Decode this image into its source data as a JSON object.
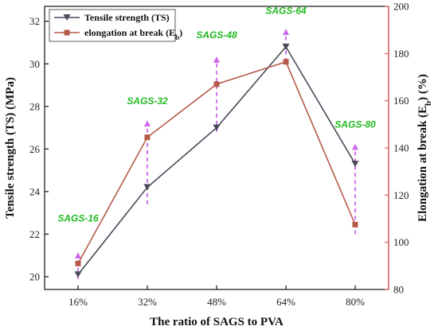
{
  "chart_data": {
    "type": "line",
    "categories": [
      "16%",
      "32%",
      "48%",
      "64%",
      "80%"
    ],
    "xlabel": "The ratio of SAGS to PVA",
    "ylabel_left": {
      "pre": "Tensile strength (TS) (MPa)",
      "sub": "",
      "post": ""
    },
    "ylabel_right": {
      "pre": "Elongation at break (E",
      "sub": "b",
      "post": ") (%)"
    },
    "ylim_left": [
      19.4,
      32.7
    ],
    "yticks_left": [
      20,
      22,
      24,
      26,
      28,
      30,
      32
    ],
    "ylim_right": [
      80,
      200
    ],
    "yticks_right": [
      80,
      100,
      120,
      140,
      160,
      180,
      200
    ],
    "legend_position": "top-left",
    "series": [
      {
        "name": {
          "pre": "Tensile strength (TS)",
          "sub": "",
          "post": ""
        },
        "axis": "left",
        "marker": "triangle-down",
        "color": "#4a4a5a",
        "values": [
          20.1,
          24.2,
          27.0,
          30.8,
          25.3
        ]
      },
      {
        "name": {
          "pre": "elongation at break (E",
          "sub": "b",
          "post": ")"
        },
        "axis": "right",
        "marker": "square",
        "color": "#b65a4a",
        "values": [
          91,
          144.5,
          167,
          176.5,
          107.5
        ]
      }
    ],
    "annotations": [
      {
        "text": "SAGS-16",
        "category": 0,
        "label_y_left": 22.6,
        "arrow_from_left": 19.9,
        "arrow_to_left": 21.0
      },
      {
        "text": "SAGS-32",
        "category": 1,
        "label_y_left": 28.1,
        "arrow_from_left": 23.4,
        "arrow_to_left": 27.2
      },
      {
        "text": "SAGS-48",
        "category": 2,
        "label_y_left": 31.2,
        "arrow_from_left": 26.8,
        "arrow_to_left": 30.2
      },
      {
        "text": "SAGS-64",
        "category": 3,
        "label_y_left": 32.35,
        "arrow_from_left": 30.1,
        "arrow_to_left": 31.5
      },
      {
        "text": "SAGS-80",
        "category": 4,
        "label_y_left": 27.0,
        "arrow_from_left": 22.0,
        "arrow_to_left": 26.1
      }
    ],
    "colors": {
      "left_axis": "#111111",
      "right_axis": "#e06060",
      "annotation_text": "#22bb22",
      "arrow": "#cc66ee"
    }
  }
}
